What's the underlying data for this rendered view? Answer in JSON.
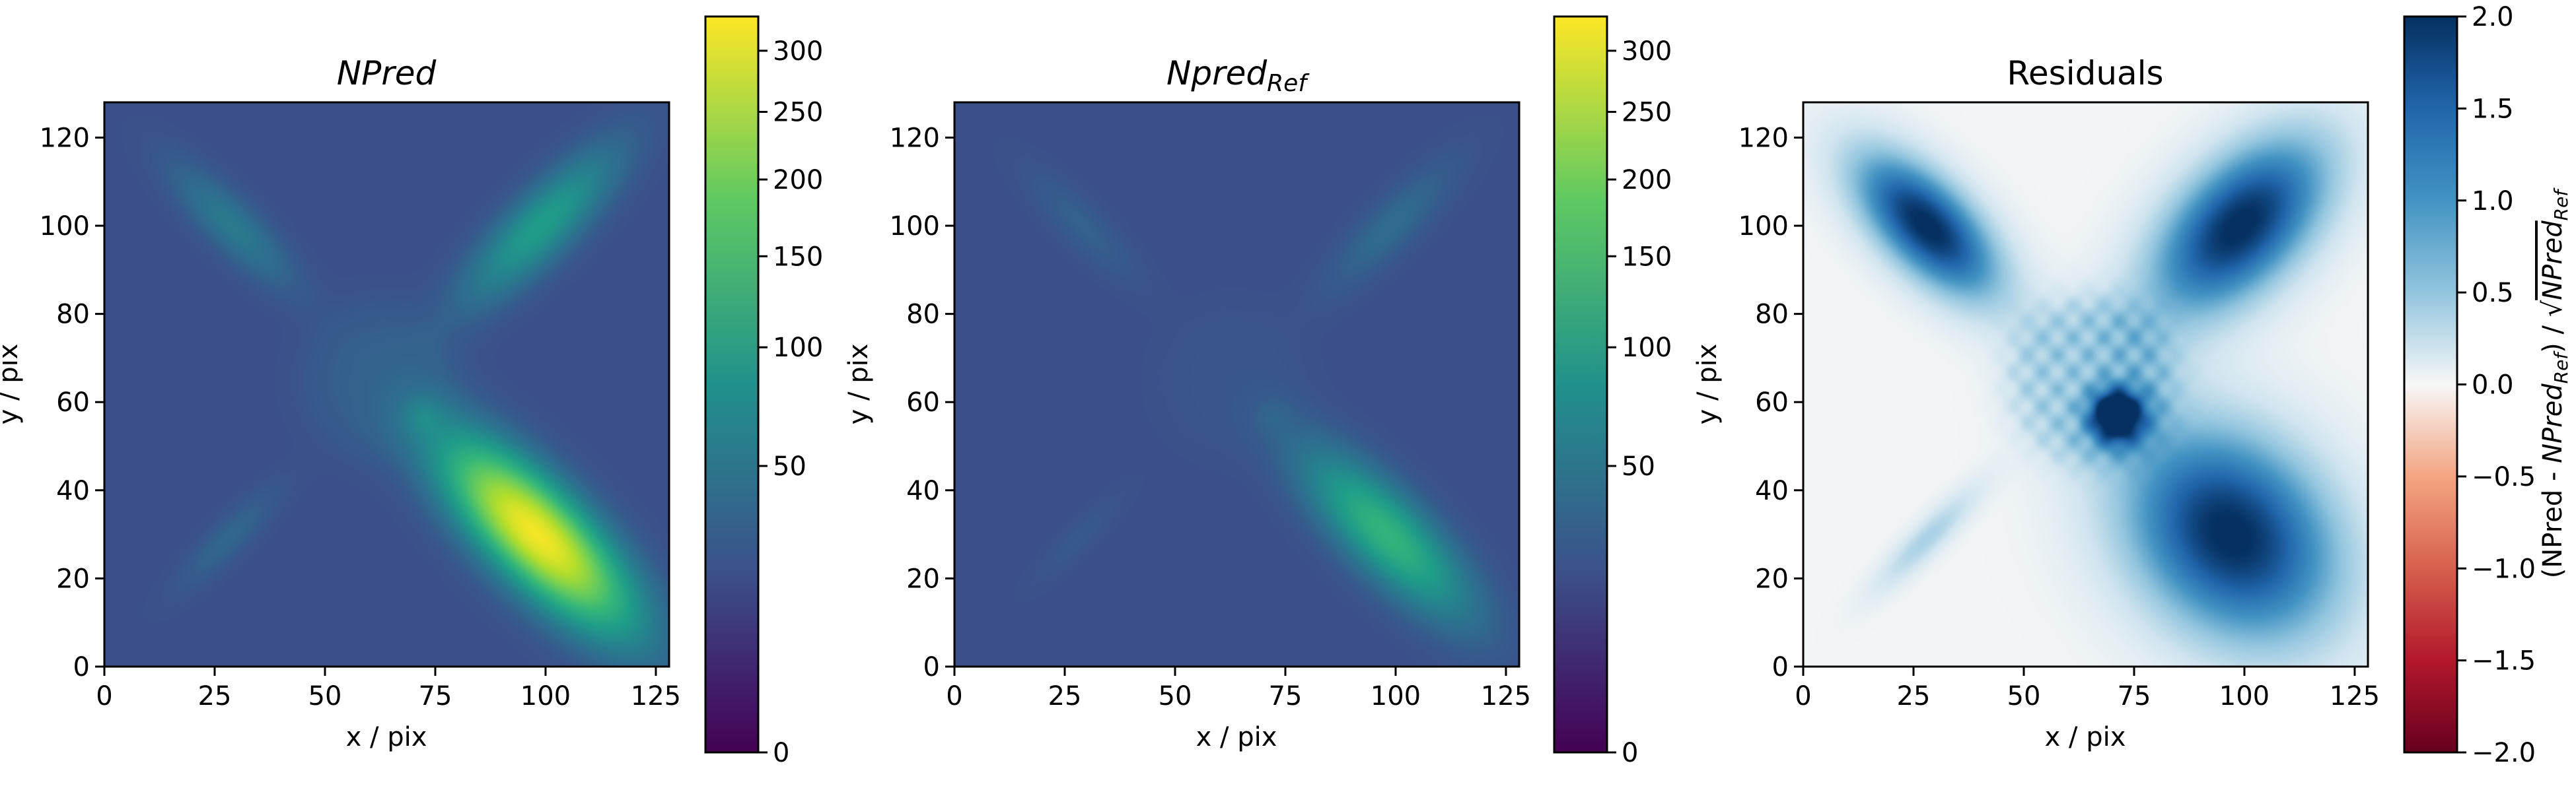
{
  "chart_data": [
    {
      "type": "heatmap",
      "title": "NPred",
      "xlabel": "x / pix",
      "ylabel": "y / pix",
      "xlim": [
        0,
        128
      ],
      "ylim": [
        0,
        128
      ],
      "xticks": [
        "0",
        "25",
        "50",
        "75",
        "100",
        "125"
      ],
      "yticks": [
        "0",
        "20",
        "40",
        "60",
        "80",
        "100",
        "120"
      ],
      "colorbar": {
        "scale": "sqrt",
        "colormap": "viridis",
        "range": [
          0,
          330
        ],
        "tick_values": [
          0,
          50,
          100,
          150,
          200,
          250,
          300
        ],
        "tick_labels": [
          "0",
          "50",
          "100",
          "150",
          "200",
          "250",
          "300"
        ]
      },
      "background": 20,
      "features": [
        {
          "shape": "ellipse",
          "cx": 98,
          "cy": 30,
          "length": 38,
          "width": 14,
          "angle_deg": -45,
          "peak": 320
        },
        {
          "shape": "ellipse",
          "cx": 99,
          "cy": 100,
          "length": 32,
          "width": 10,
          "angle_deg": 45,
          "peak": 100
        },
        {
          "shape": "ellipse",
          "cx": 29,
          "cy": 100,
          "length": 26,
          "width": 8,
          "angle_deg": -45,
          "peak": 55
        },
        {
          "shape": "ellipse",
          "cx": 28,
          "cy": 29,
          "length": 22,
          "width": 6,
          "angle_deg": 45,
          "peak": 36
        },
        {
          "shape": "disk",
          "cx": 63,
          "cy": 65,
          "radius": 17,
          "peak": 30
        },
        {
          "shape": "point",
          "cx": 72,
          "cy": 57,
          "radius": 3,
          "peak": 40
        }
      ]
    },
    {
      "type": "heatmap",
      "title_main": "Npred",
      "title_sub": "Ref",
      "xlabel": "x / pix",
      "ylabel": "y / pix",
      "xlim": [
        0,
        128
      ],
      "ylim": [
        0,
        128
      ],
      "xticks": [
        "0",
        "25",
        "50",
        "75",
        "100",
        "125"
      ],
      "yticks": [
        "0",
        "20",
        "40",
        "60",
        "80",
        "100",
        "120"
      ],
      "colorbar": {
        "scale": "sqrt",
        "colormap": "viridis",
        "range": [
          0,
          330
        ],
        "tick_values": [
          0,
          50,
          100,
          150,
          200,
          250,
          300
        ],
        "tick_labels": [
          "0",
          "50",
          "100",
          "150",
          "200",
          "250",
          "300"
        ]
      },
      "background": 20,
      "features": [
        {
          "shape": "ellipse",
          "cx": 98,
          "cy": 30,
          "length": 34,
          "width": 12,
          "angle_deg": -45,
          "peak": 140
        },
        {
          "shape": "ellipse",
          "cx": 99,
          "cy": 100,
          "length": 28,
          "width": 8,
          "angle_deg": 45,
          "peak": 40
        },
        {
          "shape": "ellipse",
          "cx": 29,
          "cy": 100,
          "length": 24,
          "width": 7,
          "angle_deg": -45,
          "peak": 32
        },
        {
          "shape": "ellipse",
          "cx": 28,
          "cy": 29,
          "length": 20,
          "width": 5,
          "angle_deg": 45,
          "peak": 26
        },
        {
          "shape": "disk",
          "cx": 63,
          "cy": 65,
          "radius": 17,
          "peak": 23
        },
        {
          "shape": "point",
          "cx": 72,
          "cy": 57,
          "radius": 3,
          "peak": 27
        }
      ]
    },
    {
      "type": "heatmap",
      "title": "Residuals",
      "xlabel": "x / pix",
      "ylabel": "y / pix",
      "xlim": [
        0,
        128
      ],
      "ylim": [
        0,
        128
      ],
      "xticks": [
        "0",
        "25",
        "50",
        "75",
        "100",
        "125"
      ],
      "yticks": [
        "0",
        "20",
        "40",
        "60",
        "80",
        "100",
        "120"
      ],
      "colorbar": {
        "scale": "linear",
        "colormap": "RdBu",
        "range": [
          -2.0,
          2.0
        ],
        "tick_values": [
          -2.0,
          -1.5,
          -1.0,
          -0.5,
          0.0,
          0.5,
          1.0,
          1.5,
          2.0
        ],
        "tick_labels": [
          "−2.0",
          "−1.5",
          "−1.0",
          "−0.5",
          "0.0",
          "0.5",
          "1.0",
          "1.5",
          "2.0"
        ],
        "label_parts": [
          "(NPred - ",
          "NPred",
          "Ref",
          ") / √",
          "NPred",
          "Ref"
        ]
      },
      "background": 0.05,
      "features": [
        {
          "shape": "ellipse",
          "cx": 97,
          "cy": 30,
          "length": 44,
          "width": 34,
          "angle_deg": -45,
          "peak": 2.0
        },
        {
          "shape": "ellipse",
          "cx": 99,
          "cy": 100,
          "length": 40,
          "width": 22,
          "angle_deg": 45,
          "peak": 2.0
        },
        {
          "shape": "ellipse",
          "cx": 28,
          "cy": 100,
          "length": 34,
          "width": 16,
          "angle_deg": -45,
          "peak": 2.0
        },
        {
          "shape": "ellipse",
          "cx": 28,
          "cy": 29,
          "length": 26,
          "width": 6,
          "angle_deg": 45,
          "peak": 0.6
        },
        {
          "shape": "disk",
          "cx": 65,
          "cy": 65,
          "radius": 19,
          "peak": 0.75
        },
        {
          "shape": "point",
          "cx": 71,
          "cy": 57,
          "radius": 4,
          "peak": 2.0
        }
      ]
    }
  ]
}
